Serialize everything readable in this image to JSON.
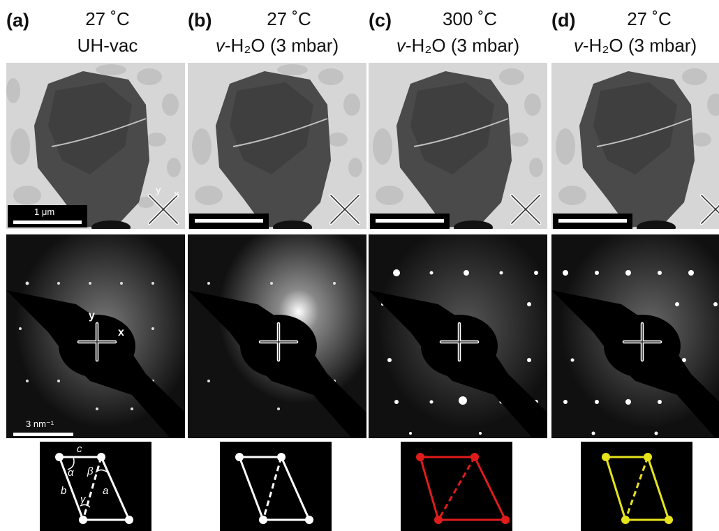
{
  "panels": [
    {
      "label": "(a)",
      "temperature": "27 ˚C",
      "condition": "UH-vac",
      "condition_prefix": "",
      "condition_suffix": "",
      "color": "#ffffff"
    },
    {
      "label": "(b)",
      "temperature": "27 ˚C",
      "condition_prefix": "v",
      "condition_suffix": "-H₂O (3 mbar)",
      "color": "#ffffff"
    },
    {
      "label": "(c)",
      "temperature": "300 ˚C",
      "condition_prefix": "v",
      "condition_suffix": "-H₂O (3 mbar)",
      "color": "#e01b1b"
    },
    {
      "label": "(d)",
      "temperature": "27 ˚C",
      "condition_prefix": "v",
      "condition_suffix": "-H₂O (3 mbar)",
      "color": "#e6e21c"
    }
  ],
  "scale_bars": {
    "tem": "1 μm",
    "diffraction": "3 nm⁻¹"
  },
  "axes": {
    "x": "x",
    "y": "y"
  },
  "lattice_labels": {
    "a": "a",
    "b": "b",
    "c": "c",
    "alpha": "α",
    "beta": "β",
    "gamma": "γ"
  }
}
